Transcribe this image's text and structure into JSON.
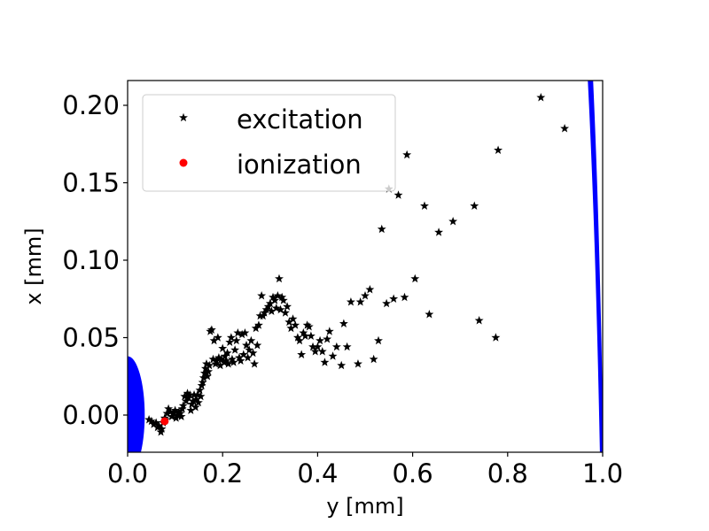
{
  "chart_data": {
    "type": "scatter",
    "xlabel": "y [mm]",
    "ylabel": "x [mm]",
    "xlim": [
      0.0,
      1.0
    ],
    "ylim": [
      -0.024,
      0.216
    ],
    "x_ticks": [
      {
        "value": 0.0,
        "label": "0.0"
      },
      {
        "value": 0.2,
        "label": "0.2"
      },
      {
        "value": 0.4,
        "label": "0.4"
      },
      {
        "value": 0.6,
        "label": "0.6"
      },
      {
        "value": 0.8,
        "label": "0.8"
      },
      {
        "value": 1.0,
        "label": "1.0"
      }
    ],
    "y_ticks": [
      {
        "value": 0.0,
        "label": "0.00"
      },
      {
        "value": 0.05,
        "label": "0.05"
      },
      {
        "value": 0.1,
        "label": "0.10"
      },
      {
        "value": 0.15,
        "label": "0.15"
      },
      {
        "value": 0.2,
        "label": "0.20"
      }
    ],
    "grid": false,
    "legend_position": "top-left",
    "series": [
      {
        "name": "excitation",
        "marker": "star",
        "color": "#000000",
        "points": [
          [
            0.045,
            -0.003
          ],
          [
            0.05,
            -0.004
          ],
          [
            0.055,
            -0.006
          ],
          [
            0.06,
            -0.005
          ],
          [
            0.063,
            -0.008
          ],
          [
            0.066,
            -0.007
          ],
          [
            0.07,
            -0.011
          ],
          [
            0.072,
            -0.009
          ],
          [
            0.075,
            -0.005
          ],
          [
            0.078,
            -0.002
          ],
          [
            0.08,
            -0.003
          ],
          [
            0.083,
            0.001
          ],
          [
            0.086,
            0.004
          ],
          [
            0.09,
            0.002
          ],
          [
            0.093,
            -0.001
          ],
          [
            0.096,
            0.001
          ],
          [
            0.1,
            0.003
          ],
          [
            0.102,
            -0.002
          ],
          [
            0.105,
            0.0
          ],
          [
            0.108,
            0.002
          ],
          [
            0.111,
            0.001
          ],
          [
            0.113,
            -0.001
          ],
          [
            0.115,
            0.004
          ],
          [
            0.117,
            0.006
          ],
          [
            0.12,
            0.012
          ],
          [
            0.123,
            0.009
          ],
          [
            0.126,
            0.014
          ],
          [
            0.128,
            0.011
          ],
          [
            0.131,
            0.013
          ],
          [
            0.133,
            0.003
          ],
          [
            0.135,
            0.007
          ],
          [
            0.138,
            0.009
          ],
          [
            0.14,
            0.013
          ],
          [
            0.143,
            0.005
          ],
          [
            0.145,
            0.01
          ],
          [
            0.147,
            0.013
          ],
          [
            0.149,
            0.008
          ],
          [
            0.152,
            0.016
          ],
          [
            0.154,
            0.012
          ],
          [
            0.156,
            0.019
          ],
          [
            0.158,
            0.021
          ],
          [
            0.16,
            0.024
          ],
          [
            0.162,
            0.027
          ],
          [
            0.164,
            0.03
          ],
          [
            0.166,
            0.033
          ],
          [
            0.168,
            0.025
          ],
          [
            0.17,
            0.028
          ],
          [
            0.172,
            0.032
          ],
          [
            0.174,
            0.054
          ],
          [
            0.177,
            0.055
          ],
          [
            0.18,
            0.036
          ],
          [
            0.182,
            0.048
          ],
          [
            0.185,
            0.033
          ],
          [
            0.187,
            0.035
          ],
          [
            0.19,
            0.05
          ],
          [
            0.192,
            0.037
          ],
          [
            0.195,
            0.032
          ],
          [
            0.197,
            0.036
          ],
          [
            0.2,
            0.043
          ],
          [
            0.203,
            0.034
          ],
          [
            0.205,
            0.038
          ],
          [
            0.207,
            0.035
          ],
          [
            0.21,
            0.04
          ],
          [
            0.212,
            0.033
          ],
          [
            0.215,
            0.047
          ],
          [
            0.218,
            0.05
          ],
          [
            0.22,
            0.036
          ],
          [
            0.223,
            0.034
          ],
          [
            0.226,
            0.042
          ],
          [
            0.229,
            0.048
          ],
          [
            0.232,
            0.053
          ],
          [
            0.235,
            0.037
          ],
          [
            0.238,
            0.035
          ],
          [
            0.241,
            0.052
          ],
          [
            0.244,
            0.039
          ],
          [
            0.247,
            0.053
          ],
          [
            0.25,
            0.045
          ],
          [
            0.253,
            0.037
          ],
          [
            0.256,
            0.042
          ],
          [
            0.26,
            0.048
          ],
          [
            0.264,
            0.04
          ],
          [
            0.267,
            0.033
          ],
          [
            0.27,
            0.056
          ],
          [
            0.273,
            0.045
          ],
          [
            0.276,
            0.058
          ],
          [
            0.279,
            0.064
          ],
          [
            0.282,
            0.077
          ],
          [
            0.285,
            0.064
          ],
          [
            0.288,
            0.066
          ],
          [
            0.292,
            0.068
          ],
          [
            0.296,
            0.07
          ],
          [
            0.3,
            0.072
          ],
          [
            0.303,
            0.067
          ],
          [
            0.306,
            0.076
          ],
          [
            0.31,
            0.074
          ],
          [
            0.313,
            0.069
          ],
          [
            0.316,
            0.077
          ],
          [
            0.319,
            0.088
          ],
          [
            0.322,
            0.068
          ],
          [
            0.325,
            0.076
          ],
          [
            0.328,
            0.074
          ],
          [
            0.332,
            0.066
          ],
          [
            0.336,
            0.07
          ],
          [
            0.34,
            0.06
          ],
          [
            0.344,
            0.056
          ],
          [
            0.348,
            0.062
          ],
          [
            0.353,
            0.058
          ],
          [
            0.358,
            0.05
          ],
          [
            0.362,
            0.048
          ],
          [
            0.366,
            0.039
          ],
          [
            0.37,
            0.053
          ],
          [
            0.374,
            0.051
          ],
          [
            0.378,
            0.058
          ],
          [
            0.382,
            0.057
          ],
          [
            0.386,
            0.051
          ],
          [
            0.39,
            0.044
          ],
          [
            0.395,
            0.041
          ],
          [
            0.4,
            0.044
          ],
          [
            0.405,
            0.048
          ],
          [
            0.41,
            0.041
          ],
          [
            0.415,
            0.034
          ],
          [
            0.42,
            0.049
          ],
          [
            0.425,
            0.054
          ],
          [
            0.432,
            0.038
          ],
          [
            0.44,
            0.044
          ],
          [
            0.45,
            0.032
          ],
          [
            0.455,
            0.059
          ],
          [
            0.462,
            0.044
          ],
          [
            0.47,
            0.073
          ],
          [
            0.485,
            0.033
          ],
          [
            0.49,
            0.073
          ],
          [
            0.5,
            0.077
          ],
          [
            0.51,
            0.081
          ],
          [
            0.518,
            0.036
          ],
          [
            0.528,
            0.048
          ],
          [
            0.535,
            0.12
          ],
          [
            0.545,
            0.072
          ],
          [
            0.55,
            0.146
          ],
          [
            0.56,
            0.075
          ],
          [
            0.57,
            0.142
          ],
          [
            0.583,
            0.076
          ],
          [
            0.588,
            0.168
          ],
          [
            0.605,
            0.088
          ],
          [
            0.625,
            0.135
          ],
          [
            0.635,
            0.065
          ],
          [
            0.655,
            0.118
          ],
          [
            0.685,
            0.125
          ],
          [
            0.73,
            0.135
          ],
          [
            0.74,
            0.061
          ],
          [
            0.775,
            0.05
          ],
          [
            0.78,
            0.171
          ],
          [
            0.87,
            0.205
          ],
          [
            0.92,
            0.185
          ]
        ]
      },
      {
        "name": "ionization",
        "marker": "circle",
        "color": "#ff0000",
        "points": [
          [
            0.078,
            -0.004
          ]
        ]
      }
    ],
    "boundary_shapes": [
      {
        "description": "blue ellipse at left edge",
        "color": "#0000ff",
        "center": [
          0.0,
          0.0
        ],
        "radius_x": 0.036,
        "radius_y": 0.038
      },
      {
        "description": "blue sliver at right edge",
        "color": "#0000ff"
      }
    ]
  }
}
